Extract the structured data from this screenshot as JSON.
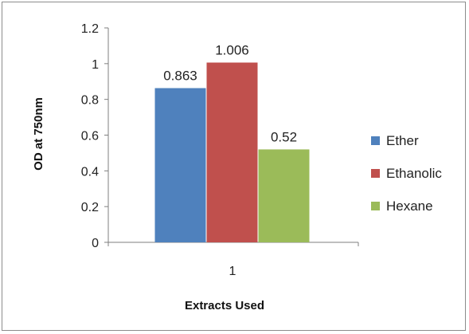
{
  "chart_data": {
    "type": "bar",
    "categories": [
      "1"
    ],
    "series": [
      {
        "name": "Ether",
        "values": [
          0.863
        ],
        "color": "#4f81bd"
      },
      {
        "name": "Ethanolic",
        "values": [
          1.006
        ],
        "color": "#c0504d"
      },
      {
        "name": "Hexane",
        "values": [
          0.52
        ],
        "color": "#9bbb59"
      }
    ],
    "data_labels": [
      "0.863",
      "1.006",
      "0.52"
    ],
    "xlabel": "Extracts Used",
    "ylabel": "OD  at 750nm",
    "ylim": [
      0,
      1.2
    ],
    "yticks": [
      "0",
      "0.2",
      "0.4",
      "0.6",
      "0.8",
      "1",
      "1.2"
    ],
    "grid": false,
    "legend_position": "right"
  }
}
